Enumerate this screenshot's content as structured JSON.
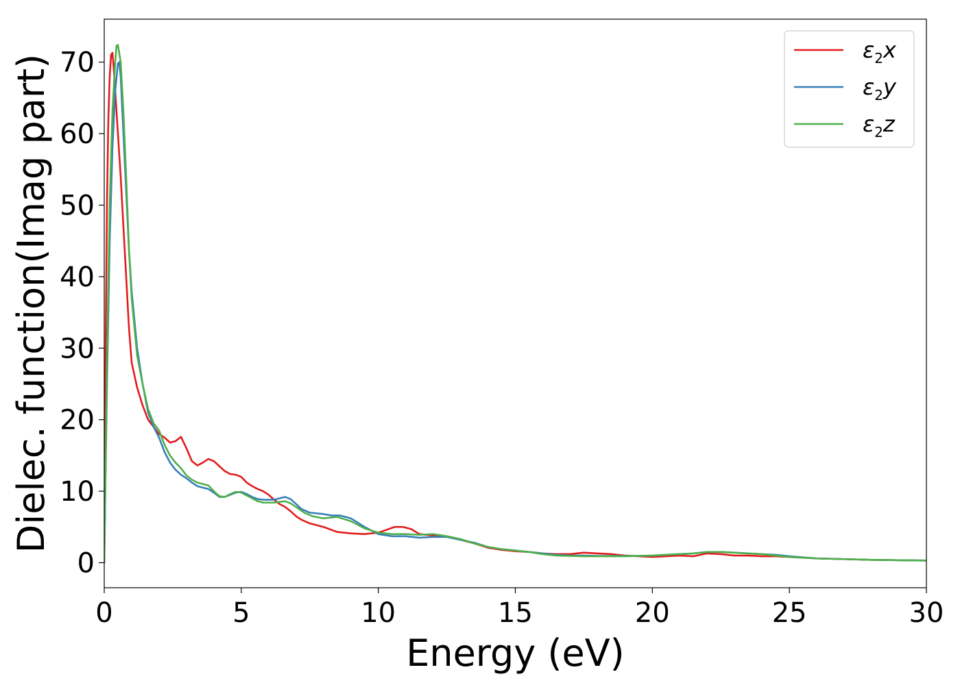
{
  "chart_data": {
    "type": "line",
    "xlabel": "Energy (eV)",
    "ylabel": "Dielec. function(Imag part)",
    "xlim": [
      0,
      30
    ],
    "ylim": [
      -3.5,
      76
    ],
    "xticks": [
      0,
      5,
      10,
      15,
      20,
      25,
      30
    ],
    "yticks": [
      0,
      10,
      20,
      30,
      40,
      50,
      60,
      70
    ],
    "grid": false,
    "legend_position": "top-right",
    "series": [
      {
        "name": "ε2x",
        "legend": {
          "base": "ε",
          "sub": "2",
          "suffix": "x"
        },
        "color": "#e41a1c",
        "x": [
          0,
          0.05,
          0.1,
          0.15,
          0.2,
          0.25,
          0.3,
          0.35,
          0.4,
          0.5,
          0.6,
          0.7,
          0.8,
          0.9,
          1.0,
          1.2,
          1.4,
          1.6,
          1.8,
          2.0,
          2.2,
          2.4,
          2.6,
          2.8,
          3.0,
          3.2,
          3.4,
          3.6,
          3.8,
          4.0,
          4.2,
          4.4,
          4.6,
          4.8,
          5.0,
          5.2,
          5.4,
          5.6,
          5.8,
          6.0,
          6.2,
          6.4,
          6.6,
          6.8,
          7.0,
          7.2,
          7.5,
          8.0,
          8.5,
          9.0,
          9.5,
          10.0,
          10.3,
          10.6,
          10.9,
          11.2,
          11.5,
          12.0,
          12.5,
          13.0,
          13.5,
          14.0,
          14.5,
          15.0,
          15.5,
          16.0,
          16.5,
          17.0,
          17.5,
          18.0,
          18.5,
          19.0,
          19.5,
          20.0,
          20.5,
          21.0,
          21.5,
          22.0,
          22.5,
          23.0,
          23.5,
          24.0,
          24.5,
          25.0,
          26.0,
          27.0,
          28.0,
          29.0,
          30.0
        ],
        "y": [
          0,
          30,
          50,
          62,
          68,
          71,
          71.3,
          69,
          66,
          60,
          54,
          47,
          40,
          33,
          28,
          24.5,
          22,
          20,
          19,
          18,
          17.5,
          16.8,
          17,
          17.6,
          16,
          14.2,
          13.6,
          14,
          14.5,
          14.2,
          13.5,
          12.8,
          12.4,
          12.3,
          12,
          11.2,
          10.7,
          10.3,
          10,
          9.5,
          8.8,
          8.2,
          7.8,
          7.2,
          6.5,
          6,
          5.5,
          5,
          4.3,
          4.1,
          4.0,
          4.2,
          4.6,
          5.0,
          5.0,
          4.7,
          4.0,
          3.8,
          3.7,
          3.2,
          2.7,
          2.1,
          1.8,
          1.6,
          1.5,
          1.3,
          1.2,
          1.2,
          1.4,
          1.3,
          1.2,
          1.0,
          0.9,
          0.8,
          0.9,
          1.0,
          0.9,
          1.3,
          1.2,
          1.0,
          1.0,
          0.9,
          0.9,
          0.8,
          0.6,
          0.5,
          0.4,
          0.35,
          0.3
        ]
      },
      {
        "name": "ε2y",
        "legend": {
          "base": "ε",
          "sub": "2",
          "suffix": "y"
        },
        "color": "#377eb8",
        "x": [
          0,
          0.1,
          0.2,
          0.3,
          0.4,
          0.5,
          0.55,
          0.6,
          0.7,
          0.8,
          0.9,
          1.0,
          1.2,
          1.4,
          1.6,
          1.8,
          2.0,
          2.2,
          2.4,
          2.6,
          2.8,
          3.0,
          3.2,
          3.4,
          3.6,
          3.8,
          4.0,
          4.2,
          4.4,
          4.6,
          4.8,
          5.0,
          5.2,
          5.4,
          5.6,
          5.8,
          6.0,
          6.2,
          6.4,
          6.6,
          6.8,
          7.0,
          7.2,
          7.5,
          8.0,
          8.3,
          8.6,
          9.0,
          9.5,
          10.0,
          10.5,
          11.0,
          11.5,
          12.0,
          12.5,
          13.0,
          13.5,
          14.0,
          14.5,
          15.0,
          15.5,
          16.0,
          16.5,
          17.0,
          17.5,
          18.0,
          18.5,
          19.0,
          19.5,
          20.0,
          20.5,
          21.0,
          21.5,
          22.0,
          22.5,
          23.0,
          23.5,
          24.0,
          24.5,
          25.0,
          26.0,
          27.0,
          28.0,
          29.0,
          30.0
        ],
        "y": [
          0,
          25,
          45,
          58,
          66,
          69.8,
          70,
          68,
          60,
          52,
          44,
          38,
          30,
          25,
          21,
          19,
          17.5,
          15.5,
          14,
          13,
          12.3,
          11.8,
          11.2,
          10.7,
          10.5,
          10.3,
          9.8,
          9.2,
          9.2,
          9.5,
          9.8,
          9.9,
          9.6,
          9.2,
          8.9,
          8.8,
          8.8,
          8.8,
          9.0,
          9.2,
          8.9,
          8.2,
          7.5,
          7.0,
          6.8,
          6.6,
          6.6,
          6.2,
          5.0,
          4.0,
          3.7,
          3.7,
          3.5,
          3.6,
          3.6,
          3.2,
          2.8,
          2.2,
          1.9,
          1.7,
          1.5,
          1.3,
          1.1,
          1.0,
          1.0,
          0.95,
          0.95,
          0.95,
          0.95,
          1.0,
          1.1,
          1.2,
          1.3,
          1.5,
          1.5,
          1.4,
          1.3,
          1.2,
          1.1,
          0.9,
          0.6,
          0.5,
          0.4,
          0.35,
          0.3
        ]
      },
      {
        "name": "ε2z",
        "legend": {
          "base": "ε",
          "sub": "2",
          "suffix": "z"
        },
        "color": "#4daf4a",
        "x": [
          0,
          0.1,
          0.2,
          0.3,
          0.4,
          0.45,
          0.5,
          0.6,
          0.7,
          0.8,
          0.9,
          1.0,
          1.2,
          1.4,
          1.6,
          1.8,
          2.0,
          2.2,
          2.4,
          2.6,
          2.8,
          3.0,
          3.2,
          3.4,
          3.6,
          3.8,
          4.0,
          4.2,
          4.4,
          4.6,
          4.8,
          5.0,
          5.2,
          5.4,
          5.6,
          5.8,
          6.0,
          6.2,
          6.4,
          6.6,
          6.8,
          7.0,
          7.3,
          7.6,
          8.0,
          8.5,
          9.0,
          9.5,
          10.0,
          10.5,
          11.0,
          11.5,
          12.0,
          12.5,
          13.0,
          13.5,
          14.0,
          14.5,
          15.0,
          15.5,
          16.0,
          16.5,
          17.0,
          17.5,
          18.0,
          18.5,
          19.0,
          19.5,
          20.0,
          20.5,
          21.0,
          21.5,
          22.0,
          22.5,
          23.0,
          23.5,
          24.0,
          24.5,
          25.0,
          26.0,
          27.0,
          28.0,
          29.0,
          30.0
        ],
        "y": [
          0,
          28,
          50,
          63,
          70,
          72.3,
          72.4,
          70,
          63,
          54,
          44,
          37,
          29,
          25,
          21.5,
          19.5,
          18.5,
          16.5,
          15,
          14,
          13.2,
          12.2,
          11.6,
          11.2,
          11.0,
          10.8,
          10,
          9.3,
          9.2,
          9.6,
          9.9,
          9.8,
          9.4,
          9.0,
          8.6,
          8.4,
          8.4,
          8.4,
          8.5,
          8.6,
          8.3,
          7.8,
          7.0,
          6.5,
          6.2,
          6.4,
          5.8,
          4.8,
          4.2,
          4.0,
          4.0,
          3.9,
          4.0,
          3.7,
          3.3,
          2.7,
          2.2,
          1.9,
          1.7,
          1.5,
          1.2,
          1.0,
          0.95,
          0.9,
          0.9,
          0.9,
          0.9,
          0.95,
          1.0,
          1.1,
          1.2,
          1.3,
          1.5,
          1.5,
          1.4,
          1.3,
          1.2,
          1.0,
          0.8,
          0.6,
          0.5,
          0.4,
          0.35,
          0.3
        ]
      }
    ]
  }
}
